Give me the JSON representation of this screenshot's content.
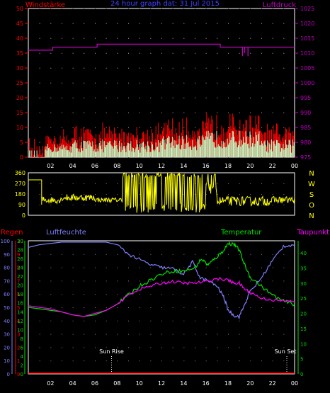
{
  "chart_data": [
    {
      "type": "bar",
      "title": "24 hour graph dat: 31 Jul 2015",
      "left_axis_label": "Windstärke",
      "right_axis_label": "Luftdruck",
      "left_ticks": [
        "0",
        "5",
        "10",
        "15",
        "20",
        "25",
        "30",
        "35",
        "40",
        "45",
        "50"
      ],
      "right_ticks": [
        "975",
        "980",
        "985",
        "990",
        "995",
        "1000",
        "1005",
        "1010",
        "1015",
        "1020",
        "1025"
      ],
      "x_ticks": [
        "02",
        "04",
        "06",
        "08",
        "10",
        "12",
        "14",
        "16",
        "18",
        "20",
        "22",
        "00"
      ],
      "left_range": [
        0,
        50
      ],
      "right_range": [
        975,
        1025
      ],
      "colors": {
        "gust": "#ff0000",
        "wind": "#c8ffc8",
        "pressure": "#c000c0",
        "axis_left": "#ff0000",
        "axis_right": "#c000c0",
        "title": "#4040ff"
      },
      "pressure_steps": [
        [
          0,
          1011
        ],
        [
          2.2,
          1012
        ],
        [
          6.2,
          1013
        ],
        [
          17.3,
          1012
        ],
        [
          24,
          1012
        ]
      ],
      "pressure_dips": [
        [
          19.3,
          1009
        ],
        [
          19.5,
          1010
        ],
        [
          19.8,
          1009
        ]
      ]
    },
    {
      "type": "line",
      "left_ticks": [
        "0",
        "90",
        "180",
        "270",
        "360"
      ],
      "right_ticks": [
        "N",
        "W",
        "S",
        "O",
        "N"
      ],
      "left_range": [
        0,
        360
      ],
      "colors": {
        "direction": "#ffff00",
        "axis": "#ffff00"
      }
    },
    {
      "type": "line",
      "labels": {
        "regen": "Regen",
        "luftfeuchte": "Luftfeuchte",
        "temperatur": "Temperatur",
        "taupunkt": "Taupunkt",
        "sunrise": "Sun Rise",
        "sunset": "Sun Set"
      },
      "regen_ticks": [
        "0",
        "1",
        "2",
        "3",
        "4",
        "5",
        "6",
        "7",
        "8",
        "9",
        "10"
      ],
      "humidity_ticks": [
        "0",
        "10",
        "20",
        "30",
        "40",
        "50",
        "60",
        "70",
        "80",
        "90",
        "100"
      ],
      "temp_left_ticks": [
        "0",
        "2",
        "4",
        "6",
        "8",
        "10",
        "12",
        "14",
        "16",
        "18",
        "20",
        "22",
        "24",
        "26",
        "28",
        "30"
      ],
      "temp_right_ticks": [
        "0",
        "5",
        "10",
        "15",
        "20",
        "25",
        "30",
        "35",
        "40"
      ],
      "x_ticks": [
        "02",
        "04",
        "06",
        "08",
        "10",
        "12",
        "14",
        "16",
        "18",
        "20",
        "22",
        "00"
      ],
      "humidity_range": [
        0,
        100
      ],
      "temperature_range": [
        0,
        44
      ],
      "sunrise_hour": 7.5,
      "sunset_hour": 23.3,
      "colors": {
        "regen": "#ff0000",
        "humidity": "#8080ff",
        "temperature": "#00e000",
        "dewpoint": "#ff00ff",
        "axis_green": "#00e000"
      },
      "humidity": [
        [
          0,
          95
        ],
        [
          1,
          97
        ],
        [
          2,
          98
        ],
        [
          3,
          99
        ],
        [
          4,
          99
        ],
        [
          5,
          99
        ],
        [
          6,
          99
        ],
        [
          7,
          99
        ],
        [
          8,
          97
        ],
        [
          9,
          90
        ],
        [
          10,
          86
        ],
        [
          11,
          82
        ],
        [
          12,
          80
        ],
        [
          13,
          79
        ],
        [
          14,
          75
        ],
        [
          14.8,
          84
        ],
        [
          15.5,
          72
        ],
        [
          16.2,
          70
        ],
        [
          17,
          66
        ],
        [
          17.6,
          58
        ],
        [
          18,
          48
        ],
        [
          18.5,
          44
        ],
        [
          19,
          43
        ],
        [
          19.5,
          52
        ],
        [
          20,
          62
        ],
        [
          21,
          72
        ],
        [
          22,
          85
        ],
        [
          23,
          96
        ],
        [
          24,
          97
        ]
      ],
      "temperature": [
        [
          0,
          22
        ],
        [
          1,
          21.5
        ],
        [
          2,
          21
        ],
        [
          3,
          20.5
        ],
        [
          4,
          19.5
        ],
        [
          5,
          19
        ],
        [
          6,
          19.5
        ],
        [
          7,
          21
        ],
        [
          8,
          23
        ],
        [
          9,
          26
        ],
        [
          10,
          29
        ],
        [
          11,
          31
        ],
        [
          12,
          33
        ],
        [
          13,
          34
        ],
        [
          14,
          34
        ],
        [
          15,
          35
        ],
        [
          15.6,
          38
        ],
        [
          16.2,
          36
        ],
        [
          16.8,
          38
        ],
        [
          17.4,
          40
        ],
        [
          18,
          43
        ],
        [
          18.5,
          43
        ],
        [
          19,
          41
        ],
        [
          19.5,
          36
        ],
        [
          20,
          32
        ],
        [
          21,
          29
        ],
        [
          22,
          26
        ],
        [
          23,
          24
        ],
        [
          24,
          23
        ]
      ],
      "dewpoint": [
        [
          0,
          22.5
        ],
        [
          1,
          22
        ],
        [
          2,
          21.5
        ],
        [
          3,
          20.5
        ],
        [
          4,
          19.5
        ],
        [
          5,
          19
        ],
        [
          6,
          20
        ],
        [
          7,
          21
        ],
        [
          8,
          23
        ],
        [
          9,
          26
        ],
        [
          10,
          28
        ],
        [
          11,
          29
        ],
        [
          12,
          30
        ],
        [
          13,
          30.5
        ],
        [
          14,
          30
        ],
        [
          15,
          30
        ],
        [
          16,
          30.5
        ],
        [
          17,
          31.5
        ],
        [
          18,
          31
        ],
        [
          18.5,
          30
        ],
        [
          19,
          30
        ],
        [
          19.5,
          28
        ],
        [
          20,
          27
        ],
        [
          21,
          25
        ],
        [
          22,
          24.5
        ],
        [
          23,
          24
        ],
        [
          24,
          24
        ]
      ]
    }
  ]
}
